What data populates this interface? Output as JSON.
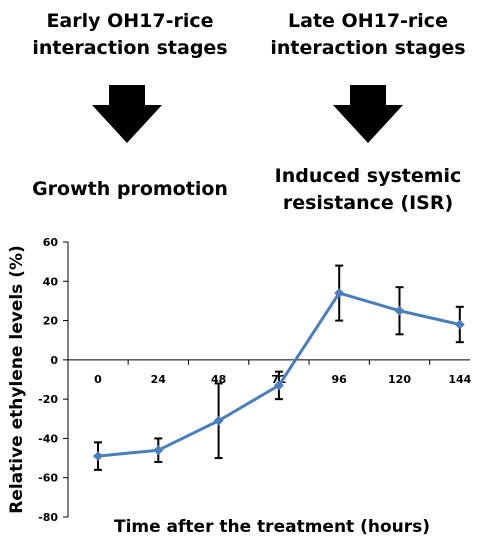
{
  "header": {
    "early": {
      "line1": "Early OH17-rice",
      "line2": "interaction stages"
    },
    "late": {
      "line1": "Late OH17-rice",
      "line2": "interaction stages"
    }
  },
  "outcomes": {
    "early": {
      "line1": "Growth promotion"
    },
    "late": {
      "line1": "Induced systemic",
      "line2": "resistance (ISR)"
    }
  },
  "icons": {
    "arrow": "down-arrow-icon"
  },
  "colors": {
    "series": "#4a7ebb",
    "errorbars": "#000000"
  },
  "chart_data": {
    "type": "line",
    "title": "",
    "xlabel": "Time after the treatment (hours)",
    "ylabel": "Relative ethylene levels (%)",
    "ylim": [
      -80,
      60
    ],
    "yticks": [
      60,
      40,
      20,
      0,
      -20,
      -40,
      -60,
      -80
    ],
    "x": [
      "0",
      "24",
      "48",
      "72",
      "96",
      "120",
      "144"
    ],
    "grid": false,
    "legend": "none",
    "series": [
      {
        "values": [
          -49,
          -46,
          -31,
          -13,
          34,
          25,
          18
        ],
        "errors": [
          7,
          6,
          19,
          7,
          14,
          12,
          9
        ]
      }
    ]
  }
}
